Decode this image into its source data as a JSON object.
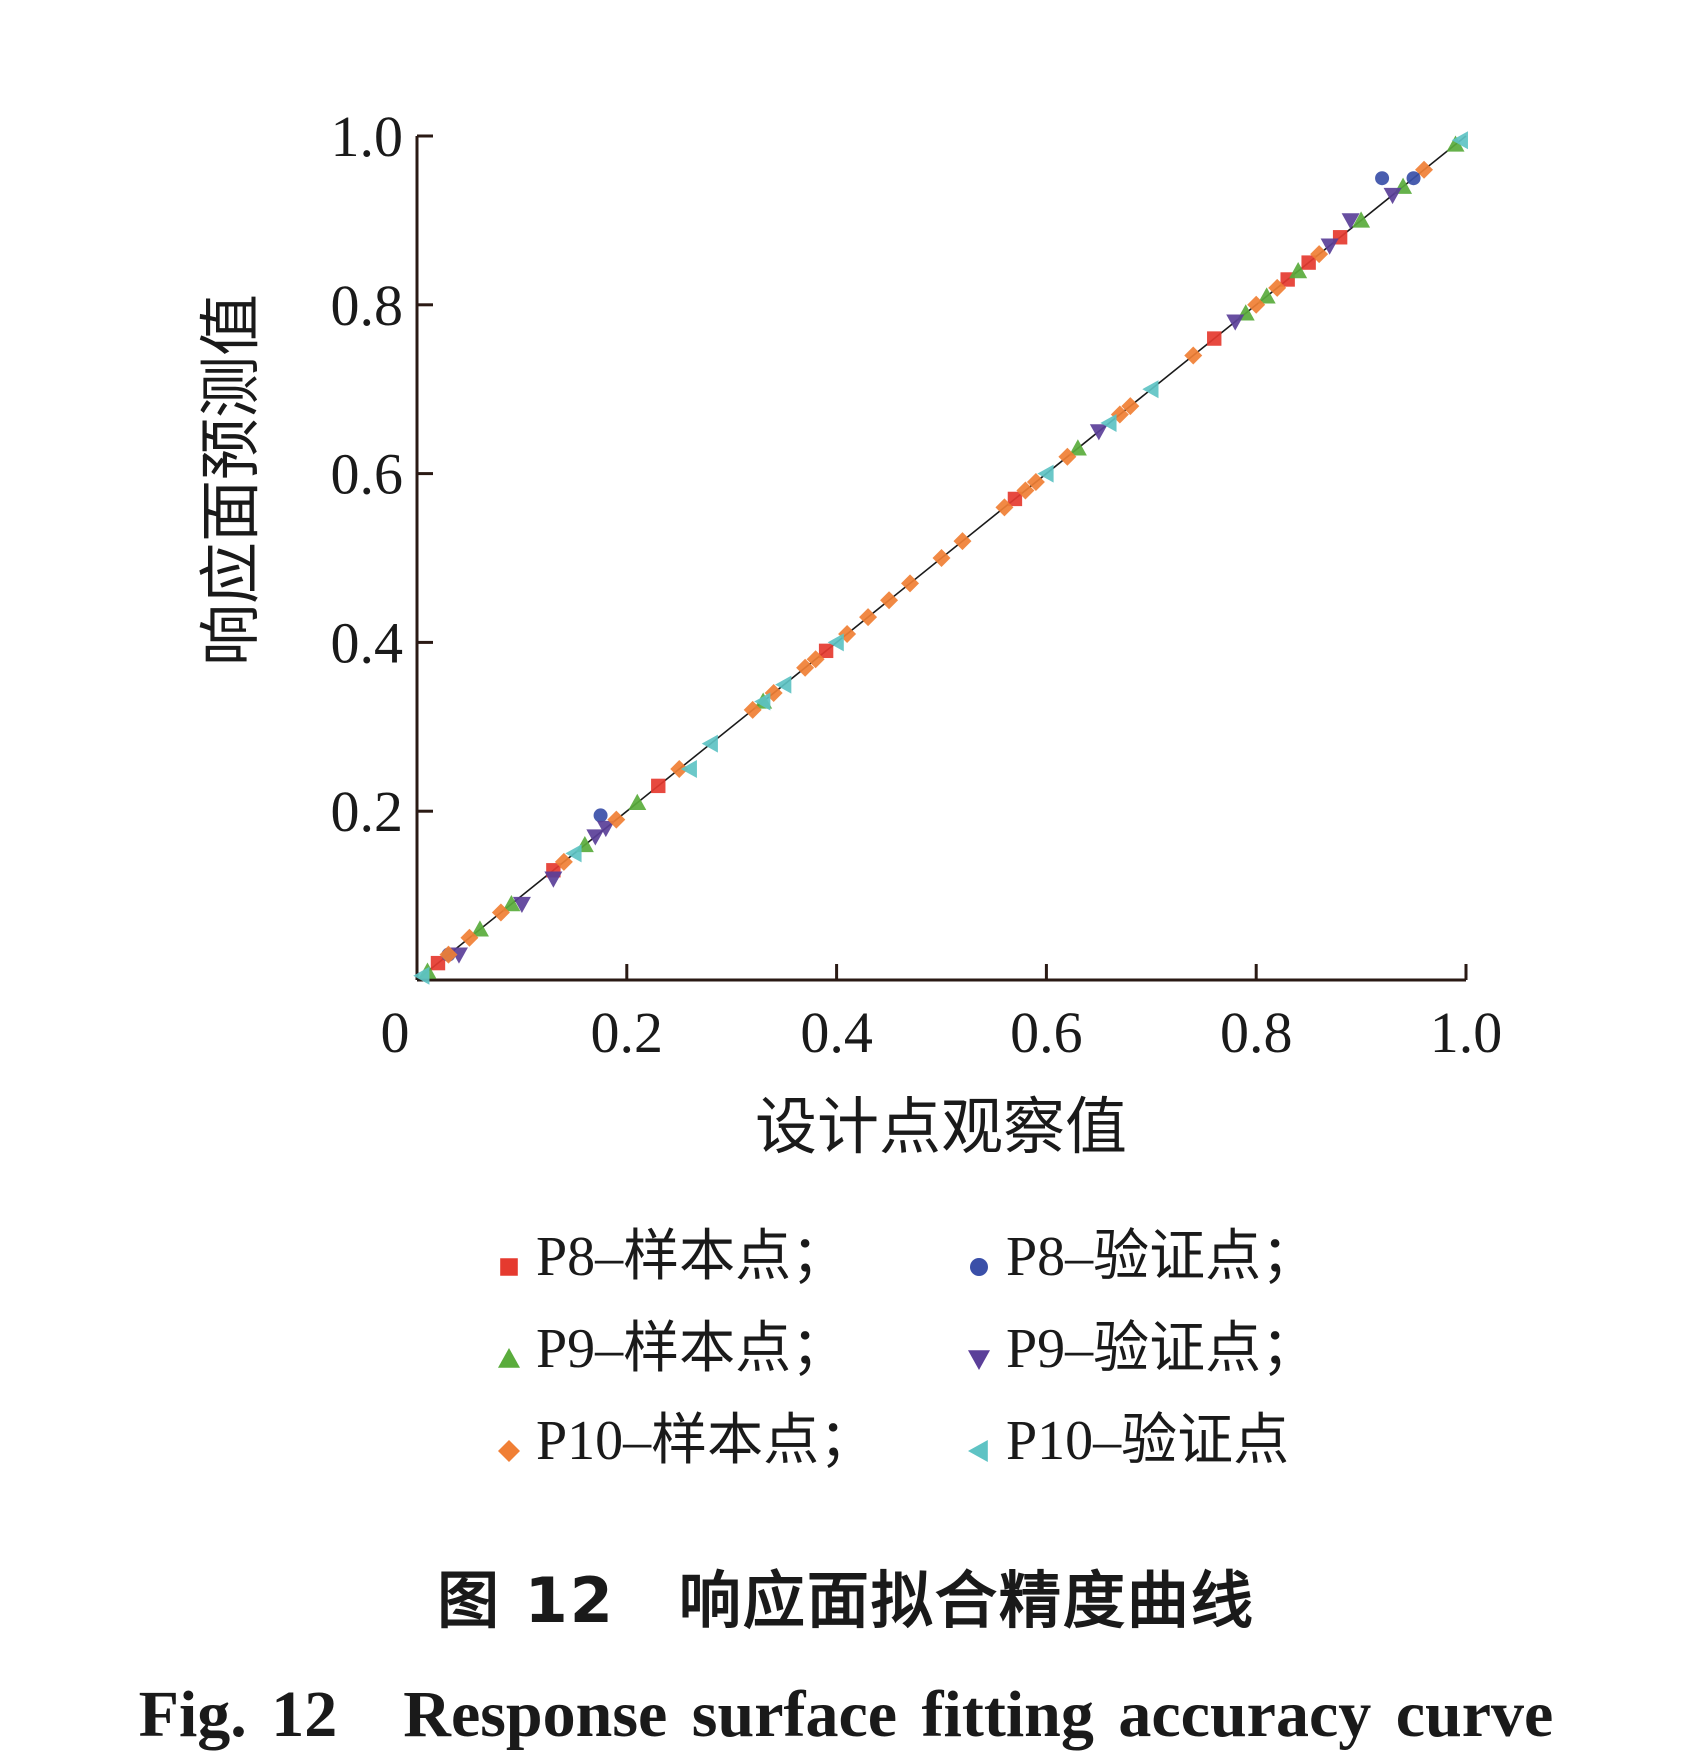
{
  "chart_data": {
    "type": "scatter",
    "title": "",
    "xlabel": "设计点观察值",
    "ylabel": "响应面预测值",
    "xlim": [
      0,
      1.0
    ],
    "ylim": [
      0,
      1.0
    ],
    "x_ticks": [
      "0",
      "0.2",
      "0.4",
      "0.6",
      "0.8",
      "1.0"
    ],
    "y_ticks": [
      "0.2",
      "0.4",
      "0.6",
      "0.8",
      "1.0"
    ],
    "grid": false,
    "reference_line": {
      "type": "y=x",
      "color": "#1a1a1a"
    },
    "legend_position": "below",
    "series": [
      {
        "name": "P8-样本点",
        "marker": "square",
        "color": "#e53a2f",
        "points": [
          [
            0.02,
            0.02
          ],
          [
            0.23,
            0.23
          ],
          [
            0.39,
            0.39
          ],
          [
            0.57,
            0.57
          ],
          [
            0.76,
            0.76
          ],
          [
            0.83,
            0.83
          ],
          [
            0.85,
            0.85
          ],
          [
            0.88,
            0.88
          ],
          [
            0.13,
            0.13
          ]
        ]
      },
      {
        "name": "P8-验证点",
        "marker": "circle",
        "color": "#3a4fa8",
        "points": [
          [
            0.175,
            0.195
          ],
          [
            0.92,
            0.95
          ],
          [
            0.03,
            0.03
          ],
          [
            0.95,
            0.95
          ]
        ]
      },
      {
        "name": "P9-样本点",
        "marker": "triangle-up",
        "color": "#5aac3c",
        "points": [
          [
            0.01,
            0.01
          ],
          [
            0.06,
            0.06
          ],
          [
            0.09,
            0.09
          ],
          [
            0.16,
            0.16
          ],
          [
            0.21,
            0.21
          ],
          [
            0.33,
            0.33
          ],
          [
            0.63,
            0.63
          ],
          [
            0.79,
            0.79
          ],
          [
            0.81,
            0.81
          ],
          [
            0.84,
            0.84
          ],
          [
            0.9,
            0.9
          ],
          [
            0.94,
            0.94
          ],
          [
            0.99,
            0.99
          ]
        ]
      },
      {
        "name": "P9-验证点",
        "marker": "triangle-down",
        "color": "#5b3f99",
        "points": [
          [
            0.04,
            0.03
          ],
          [
            0.1,
            0.09
          ],
          [
            0.13,
            0.12
          ],
          [
            0.17,
            0.17
          ],
          [
            0.18,
            0.18
          ],
          [
            0.65,
            0.65
          ],
          [
            0.78,
            0.78
          ],
          [
            0.87,
            0.87
          ],
          [
            0.89,
            0.9
          ],
          [
            0.93,
            0.93
          ]
        ]
      },
      {
        "name": "P10-样本点",
        "marker": "diamond",
        "color": "#f07f35",
        "points": [
          [
            0.03,
            0.03
          ],
          [
            0.05,
            0.05
          ],
          [
            0.08,
            0.08
          ],
          [
            0.14,
            0.14
          ],
          [
            0.19,
            0.19
          ],
          [
            0.25,
            0.25
          ],
          [
            0.32,
            0.32
          ],
          [
            0.34,
            0.34
          ],
          [
            0.37,
            0.37
          ],
          [
            0.38,
            0.38
          ],
          [
            0.41,
            0.41
          ],
          [
            0.43,
            0.43
          ],
          [
            0.45,
            0.45
          ],
          [
            0.47,
            0.47
          ],
          [
            0.5,
            0.5
          ],
          [
            0.52,
            0.52
          ],
          [
            0.56,
            0.56
          ],
          [
            0.58,
            0.58
          ],
          [
            0.59,
            0.59
          ],
          [
            0.62,
            0.62
          ],
          [
            0.67,
            0.67
          ],
          [
            0.68,
            0.68
          ],
          [
            0.74,
            0.74
          ],
          [
            0.8,
            0.8
          ],
          [
            0.82,
            0.82
          ],
          [
            0.86,
            0.86
          ],
          [
            0.96,
            0.96
          ]
        ]
      },
      {
        "name": "P10-验证点",
        "marker": "triangle-left",
        "color": "#5ec3c4",
        "points": [
          [
            0.005,
            0.005
          ],
          [
            0.15,
            0.15
          ],
          [
            0.26,
            0.25
          ],
          [
            0.28,
            0.28
          ],
          [
            0.33,
            0.33
          ],
          [
            0.35,
            0.35
          ],
          [
            0.4,
            0.4
          ],
          [
            0.6,
            0.6
          ],
          [
            0.66,
            0.66
          ],
          [
            0.7,
            0.7
          ],
          [
            0.995,
            0.995
          ]
        ]
      }
    ]
  },
  "legend": {
    "items": [
      {
        "label": "P8–样本点；",
        "marker": "square",
        "color": "#e53a2f"
      },
      {
        "label": "P8–验证点；",
        "marker": "circle",
        "color": "#3a4fa8"
      },
      {
        "label": "P9–样本点；",
        "marker": "triangle-up",
        "color": "#5aac3c"
      },
      {
        "label": "P9–验证点；",
        "marker": "triangle-down",
        "color": "#5b3f99"
      },
      {
        "label": "P10–样本点；",
        "marker": "diamond",
        "color": "#f07f35"
      },
      {
        "label": "P10–验证点",
        "marker": "triangle-left",
        "color": "#5ec3c4"
      }
    ]
  },
  "caption": {
    "cn": "图 12　响应面拟合精度曲线",
    "en": "Fig. 12　Response surface fitting accuracy curve"
  }
}
